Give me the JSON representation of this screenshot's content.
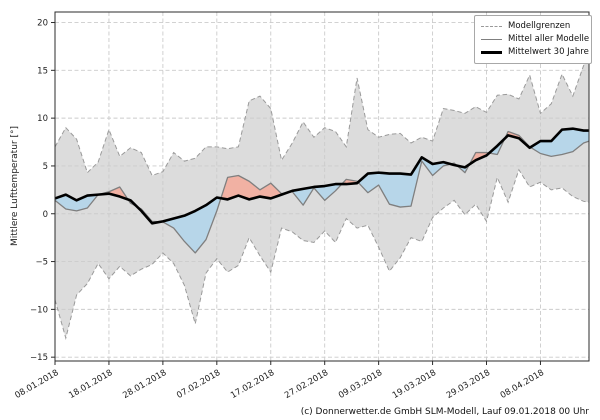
{
  "footer": {
    "text": "(c) Donnerwetter.de GmbH SLM-Modell, Lauf 09.01.2018 00 Uhr"
  },
  "legend": {
    "position": "top-right",
    "items": [
      {
        "label": "Modellgrenzen",
        "style": "dashed-gray"
      },
      {
        "label": "Mittel aller Modelle",
        "style": "solid-gray"
      },
      {
        "label": "Mittelwert 30 Jahre",
        "style": "thick-black"
      }
    ]
  },
  "colors": {
    "band_fill": "#dcdcdc",
    "band_edge": "#9a9a9a",
    "warm_fill": "#f1b1a3",
    "cold_fill": "#b7d6e9",
    "model_mean_line": "#7f7f7f",
    "climate_mean_line": "#000000",
    "grid": "#cbcbcb",
    "spine": "#2b2b2b",
    "tick_text": "#222222"
  },
  "chart_data": {
    "type": "line",
    "title": "",
    "xlabel": "",
    "ylabel": "Mittlere Lufttemperatur [°]",
    "grid": true,
    "legend_position": "top-right",
    "x_unit": "days since 08.01.2018",
    "xlim": [
      0,
      99
    ],
    "ylim": [
      -15.4,
      21.1
    ],
    "y_ticks": [
      20,
      15,
      10,
      5,
      0,
      -5,
      -10,
      -15
    ],
    "x_tick_days": [
      0,
      10,
      20,
      30,
      40,
      50,
      60,
      70,
      80,
      90
    ],
    "x_tick_labels": [
      "08.01.2018",
      "18.01.2018",
      "28.01.2018",
      "07.02.2018",
      "17.02.2018",
      "27.02.2018",
      "09.03.2018",
      "19.03.2018",
      "29.03.2018",
      "08.04.2018"
    ],
    "days": [
      0,
      2,
      4,
      6,
      8,
      10,
      12,
      14,
      16,
      18,
      20,
      22,
      24,
      26,
      28,
      30,
      32,
      34,
      36,
      38,
      40,
      42,
      44,
      46,
      48,
      50,
      52,
      54,
      56,
      58,
      60,
      62,
      64,
      66,
      68,
      70,
      72,
      74,
      76,
      78,
      80,
      82,
      84,
      86,
      88,
      90,
      92,
      94,
      96,
      98,
      99
    ],
    "series": [
      {
        "name": "Modellgrenzen (oberes Limit)",
        "role": "upper",
        "values": [
          7.0,
          9.0,
          7.8,
          4.3,
          5.4,
          8.8,
          6.0,
          6.9,
          6.4,
          4.0,
          4.4,
          6.4,
          5.5,
          5.8,
          7.0,
          7.0,
          6.8,
          7.0,
          11.8,
          12.3,
          11.0,
          5.6,
          7.4,
          9.6,
          8.0,
          9.0,
          8.6,
          7.0,
          14.2,
          8.8,
          8.0,
          8.3,
          8.4,
          7.4,
          8.0,
          7.6,
          11.0,
          10.8,
          10.5,
          11.2,
          10.6,
          12.4,
          12.5,
          12.0,
          14.5,
          10.5,
          11.5,
          14.6,
          12.3,
          15.5,
          16.6
        ]
      },
      {
        "name": "Modellgrenzen (unteres Limit)",
        "role": "lower",
        "values": [
          -9.0,
          -13.0,
          -8.5,
          -7.3,
          -5.2,
          -6.8,
          -5.5,
          -6.5,
          -5.8,
          -5.3,
          -4.1,
          -5.2,
          -7.5,
          -11.5,
          -6.2,
          -4.7,
          -6.1,
          -5.4,
          -2.5,
          -4.4,
          -6.1,
          -1.5,
          -1.9,
          -2.8,
          -3.0,
          -1.8,
          -3.0,
          -0.5,
          -1.5,
          -1.2,
          -3.5,
          -6.0,
          -4.6,
          -2.5,
          -2.9,
          -0.4,
          0.6,
          1.4,
          -0.1,
          1.0,
          -0.8,
          3.8,
          1.2,
          4.6,
          2.8,
          3.3,
          2.5,
          2.7,
          1.8,
          1.3,
          1.2
        ]
      },
      {
        "name": "Mittel aller Modelle",
        "role": "mean",
        "values": [
          1.4,
          0.5,
          0.3,
          0.6,
          2.0,
          2.3,
          2.8,
          1.1,
          0.5,
          -0.8,
          -0.85,
          -1.5,
          -2.9,
          -4.1,
          -2.7,
          0.3,
          3.8,
          4.0,
          3.4,
          2.5,
          3.2,
          2.1,
          2.3,
          0.9,
          2.7,
          1.4,
          2.4,
          3.6,
          3.4,
          2.2,
          3.0,
          1.0,
          0.7,
          0.8,
          5.5,
          4.0,
          5.0,
          5.3,
          4.3,
          6.4,
          6.4,
          6.2,
          8.6,
          8.2,
          7.0,
          6.3,
          6.0,
          6.2,
          6.5,
          7.4,
          7.6
        ]
      },
      {
        "name": "Mittelwert 30 Jahre",
        "role": "clim",
        "values": [
          1.6,
          2.0,
          1.4,
          1.9,
          2.0,
          2.1,
          1.8,
          1.4,
          0.3,
          -1.0,
          -0.8,
          -0.5,
          -0.2,
          0.3,
          0.9,
          1.7,
          1.5,
          1.9,
          1.5,
          1.8,
          1.6,
          2.0,
          2.4,
          2.6,
          2.8,
          2.9,
          3.1,
          3.1,
          3.2,
          4.2,
          4.3,
          4.2,
          4.2,
          4.1,
          5.9,
          5.2,
          5.4,
          5.1,
          4.85,
          5.6,
          6.1,
          7.1,
          8.2,
          7.9,
          6.9,
          7.6,
          7.6,
          8.8,
          8.9,
          8.7,
          8.7
        ]
      }
    ]
  }
}
